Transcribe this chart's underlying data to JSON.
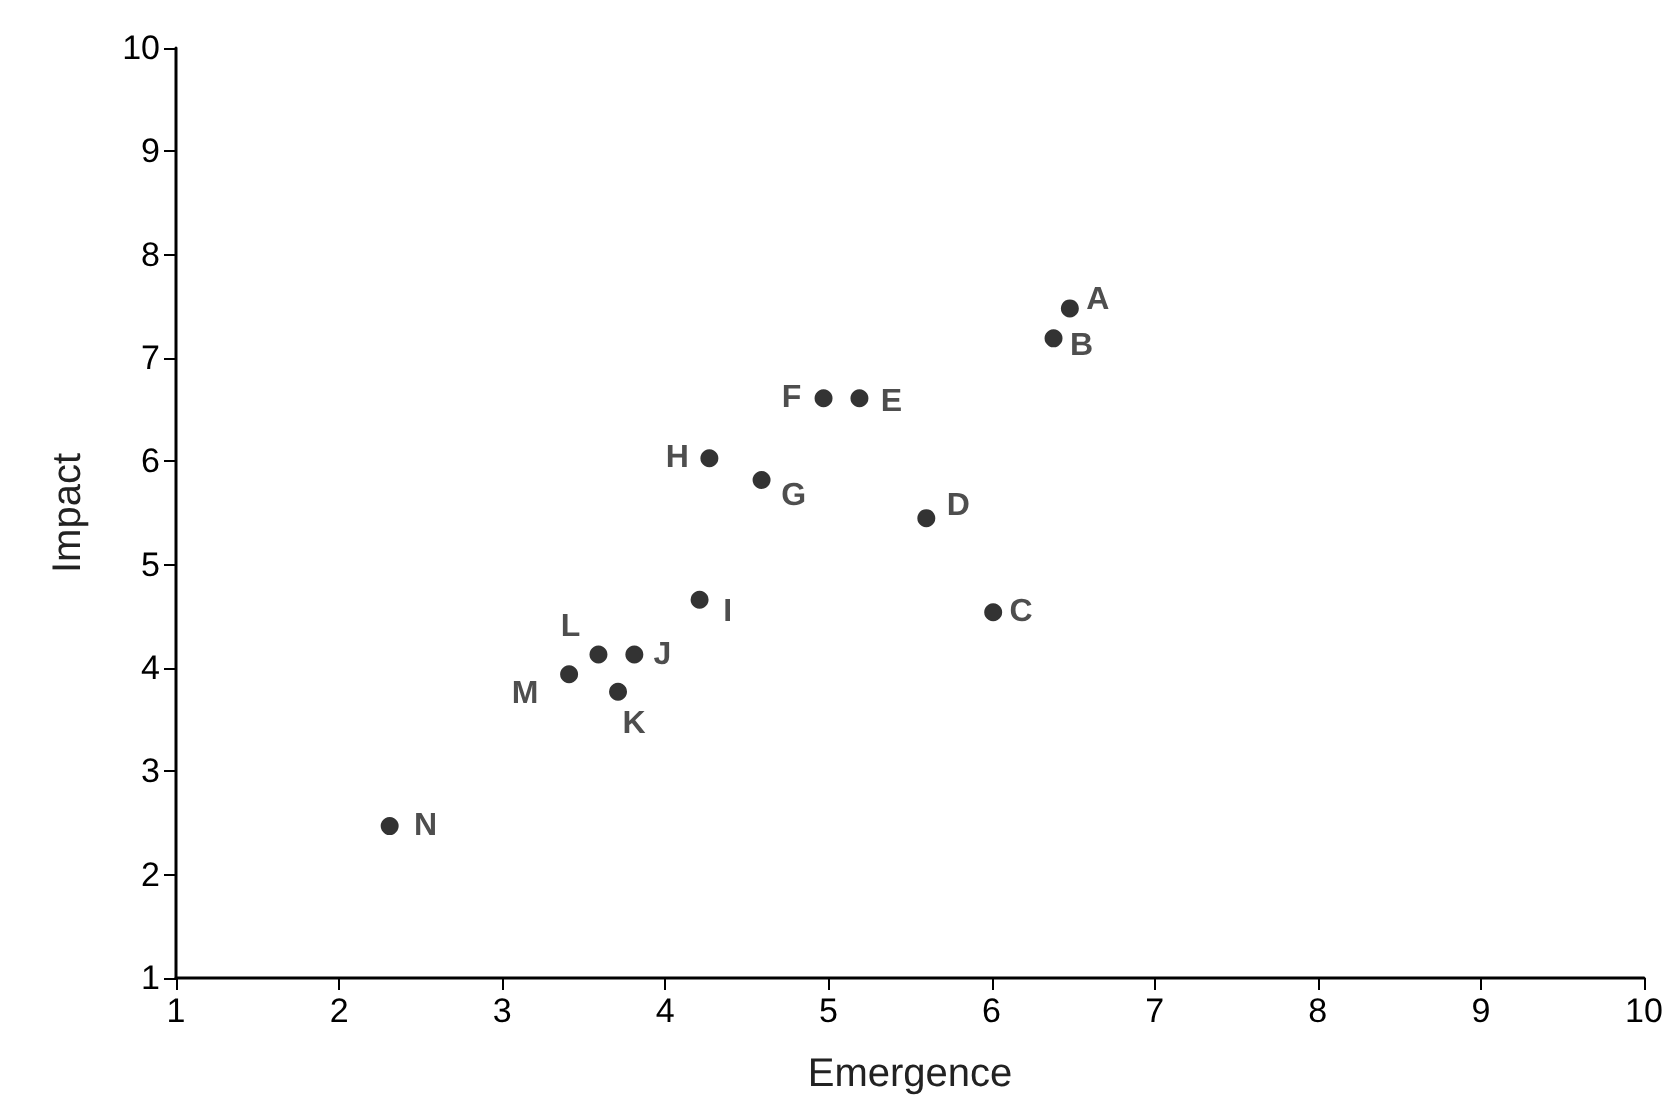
{
  "chart_data": {
    "type": "scatter",
    "xlabel": "Emergence",
    "ylabel": "Impact",
    "x": [
      6.48,
      6.38,
      6.01,
      5.6,
      5.19,
      4.97,
      4.59,
      4.27,
      4.21,
      3.81,
      3.71,
      3.59,
      3.41,
      2.31
    ],
    "values": [
      7.48,
      7.19,
      4.54,
      5.45,
      6.61,
      6.61,
      5.82,
      6.03,
      4.66,
      4.13,
      3.77,
      4.13,
      3.94,
      2.47
    ],
    "color": "#000000",
    "marker": "circle",
    "annotations": [
      {
        "text": "A",
        "x": 6.48,
        "y": 7.48
      },
      {
        "text": "B",
        "x": 6.38,
        "y": 7.19
      },
      {
        "text": "C",
        "x": 6.01,
        "y": 4.54
      },
      {
        "text": "D",
        "x": 5.6,
        "y": 5.45
      },
      {
        "text": "E",
        "x": 5.19,
        "y": 6.61
      },
      {
        "text": "F",
        "x": 4.97,
        "y": 6.61
      },
      {
        "text": "G",
        "x": 4.59,
        "y": 5.82
      },
      {
        "text": "H",
        "x": 4.27,
        "y": 6.03
      },
      {
        "text": "I",
        "x": 4.21,
        "y": 4.66
      },
      {
        "text": "J",
        "x": 3.81,
        "y": 4.13
      },
      {
        "text": "K",
        "x": 3.71,
        "y": 3.77
      },
      {
        "text": "L",
        "x": 3.59,
        "y": 4.13
      },
      {
        "text": "M",
        "x": 3.41,
        "y": 3.94
      },
      {
        "text": "N",
        "x": 2.31,
        "y": 2.47
      }
    ],
    "xlim": [
      1,
      10
    ],
    "ylim": [
      1,
      10
    ],
    "xticks": [
      1,
      2,
      3,
      4,
      5,
      6,
      7,
      8,
      9,
      10
    ],
    "yticks": [
      1,
      2,
      3,
      4,
      5,
      6,
      7,
      8,
      9,
      10
    ],
    "grid": false
  }
}
